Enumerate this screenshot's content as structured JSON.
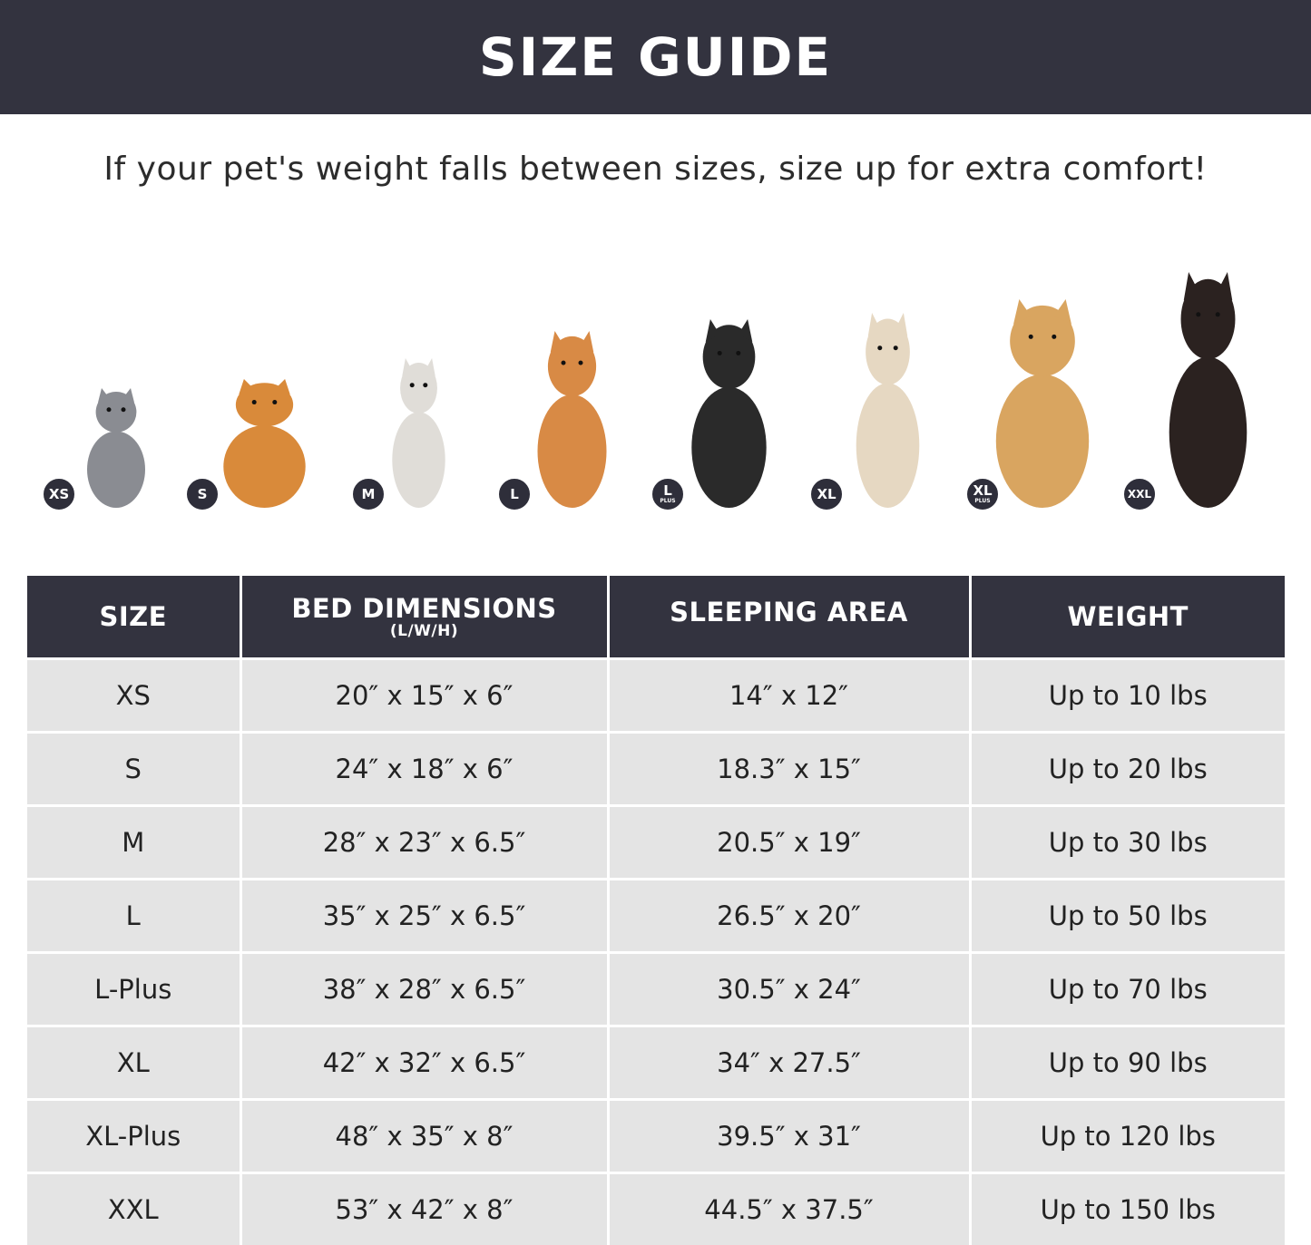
{
  "header": {
    "title": "SIZE GUIDE"
  },
  "subtitle": "If your pet's weight falls between sizes, size up for extra comfort!",
  "pets": [
    {
      "badge": "XS",
      "badge_sub": "",
      "animal": "cat",
      "color": "#8a8c92"
    },
    {
      "badge": "S",
      "badge_sub": "",
      "animal": "pomeranian",
      "color": "#d98a3a"
    },
    {
      "badge": "M",
      "badge_sub": "",
      "animal": "french-bulldog",
      "color": "#e0ddd8"
    },
    {
      "badge": "L",
      "badge_sub": "",
      "animal": "shiba-inu",
      "color": "#d88a45"
    },
    {
      "badge": "L",
      "badge_sub": "PLUS",
      "animal": "border-collie",
      "color": "#2a2a2a"
    },
    {
      "badge": "XL",
      "badge_sub": "",
      "animal": "labrador",
      "color": "#e6d8c2"
    },
    {
      "badge": "XL",
      "badge_sub": "PLUS",
      "animal": "golden-retriever",
      "color": "#d9a560"
    },
    {
      "badge": "XXL",
      "badge_sub": "",
      "animal": "doberman",
      "color": "#2b2220"
    }
  ],
  "table": {
    "headers": [
      "SIZE",
      "BED DIMENSIONS",
      "SLEEPING AREA",
      "WEIGHT"
    ],
    "header_sub": "(L/W/H)",
    "rows": [
      [
        "XS",
        "20″ x 15″ x 6″",
        "14″ x 12″",
        "Up to 10 lbs"
      ],
      [
        "S",
        "24″ x 18″ x 6″",
        "18.3″ x 15″",
        "Up to 20 lbs"
      ],
      [
        "M",
        "28″ x 23″ x 6.5″",
        "20.5″ x 19″",
        "Up to 30 lbs"
      ],
      [
        "L",
        "35″ x 25″ x 6.5″",
        "26.5″ x 20″",
        "Up to 50 lbs"
      ],
      [
        "L-Plus",
        "38″ x 28″ x 6.5″",
        "30.5″ x 24″",
        "Up to 70 lbs"
      ],
      [
        "XL",
        "42″ x 32″ x 6.5″",
        "34″ x 27.5″",
        "Up to 90 lbs"
      ],
      [
        "XL-Plus",
        "48″ x 35″ x 8″",
        "39.5″ x 31″",
        "Up to 120 lbs"
      ],
      [
        "XXL",
        "53″ x 42″ x 8″",
        "44.5″ x 37.5″",
        "Up to 150 lbs"
      ]
    ]
  }
}
